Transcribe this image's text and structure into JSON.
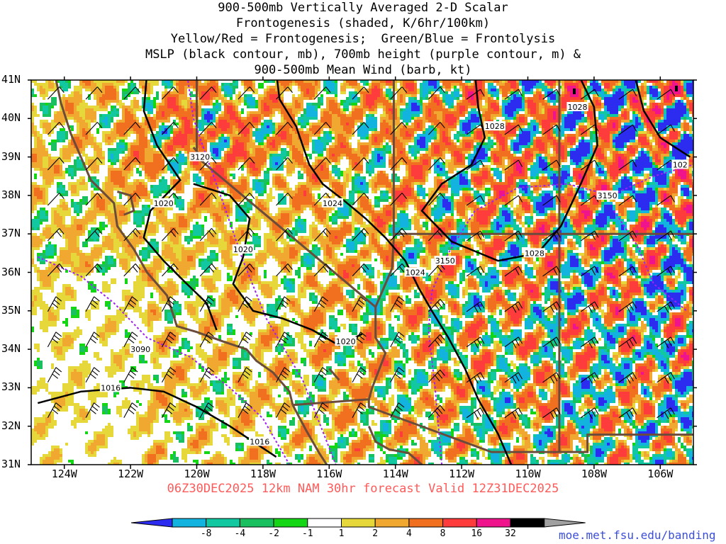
{
  "title_lines": [
    "900-500mb Vertically Averaged 2-D Scalar",
    "Frontogenesis (shaded, K/6hr/100km)",
    "Yellow/Red = Frontogenesis;  Green/Blue = Frontolysis",
    "MSLP (black contour, mb), 700mb height (purple contour, m) &",
    "900-500mb Mean Wind (barb, kt)"
  ],
  "valid_text": "06Z30DEC2025 12km NAM 30hr forecast Valid 12Z31DEC2025",
  "source_url": "moe.met.fsu.edu/banding",
  "colors": {
    "mslp": "#000000",
    "height700": "#a020f0",
    "border": "#6b4c3b",
    "valid_text": "#ff5a5a"
  },
  "colorbar": {
    "labels": [
      "-8",
      "-4",
      "-2",
      "-1",
      "1",
      "2",
      "4",
      "8",
      "16",
      "32"
    ],
    "colors": [
      "#2c2cf0",
      "#13b3e0",
      "#12c8a0",
      "#1ac060",
      "#14d614",
      "#ffffff",
      "#e6d83a",
      "#f0a830",
      "#f07020",
      "#ff3c3c",
      "#f0148c",
      "#000000",
      "#a0a0a0"
    ]
  },
  "chart_data": {
    "type": "heatmap",
    "xlabel": "",
    "ylabel": "",
    "x_ticks": [
      "124W",
      "122W",
      "120W",
      "118W",
      "116W",
      "114W",
      "112W",
      "110W",
      "108W",
      "106W"
    ],
    "y_ticks": [
      "41N",
      "40N",
      "39N",
      "38N",
      "37N",
      "36N",
      "35N",
      "34N",
      "33N",
      "32N",
      "31N"
    ],
    "lon_range": [
      -125,
      -105
    ],
    "lat_range": [
      31,
      41
    ],
    "mslp_labels": [
      {
        "text": "1028",
        "lon": -108.5,
        "lat": 40.3
      },
      {
        "text": "1028",
        "lon": -111.0,
        "lat": 39.8
      },
      {
        "text": "1028",
        "lon": -109.8,
        "lat": 36.5
      },
      {
        "text": "1024",
        "lon": -115.9,
        "lat": 37.8
      },
      {
        "text": "1024",
        "lon": -113.4,
        "lat": 36.0
      },
      {
        "text": "1020",
        "lon": -121.0,
        "lat": 37.8
      },
      {
        "text": "1020",
        "lon": -118.6,
        "lat": 36.6
      },
      {
        "text": "1020",
        "lon": -115.5,
        "lat": 34.2
      },
      {
        "text": "1016",
        "lon": -122.6,
        "lat": 33.0
      },
      {
        "text": "1016",
        "lon": -118.1,
        "lat": 31.6
      },
      {
        "text": "102",
        "lon": -105.4,
        "lat": 38.8
      }
    ],
    "height700_labels": [
      {
        "text": "3120",
        "lon": -119.9,
        "lat": 39.0
      },
      {
        "text": "3150",
        "lon": -112.5,
        "lat": 36.3
      },
      {
        "text": "3150",
        "lon": -107.6,
        "lat": 38.0
      },
      {
        "text": "3090",
        "lon": -121.7,
        "lat": 34.0
      }
    ]
  }
}
